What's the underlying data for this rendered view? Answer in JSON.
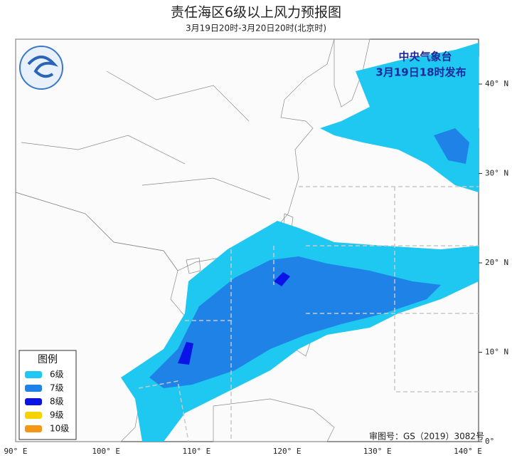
{
  "title": "责任海区6级以上风力预报图",
  "subtitle": "3月19日20时-3月20日20时(北京时)",
  "stamp": {
    "issuer": "中央气象台",
    "issued": "3月19日18时发布"
  },
  "approval": "审图号：GS（2019）3082号",
  "legend": {
    "title": "图例",
    "items": [
      {
        "label": "6级",
        "color": "#1ec8f0"
      },
      {
        "label": "7级",
        "color": "#1e82e6"
      },
      {
        "label": "8级",
        "color": "#0a14e6"
      },
      {
        "label": "9级",
        "color": "#f5d200"
      },
      {
        "label": "10级",
        "color": "#f59614"
      }
    ]
  },
  "lon_labels": [
    "90° E",
    "100° E",
    "110° E",
    "120° E",
    "130° E",
    "140° E"
  ],
  "lat_labels": [
    "40° N",
    "30° N",
    "20° N",
    "10° N",
    "0°"
  ]
}
